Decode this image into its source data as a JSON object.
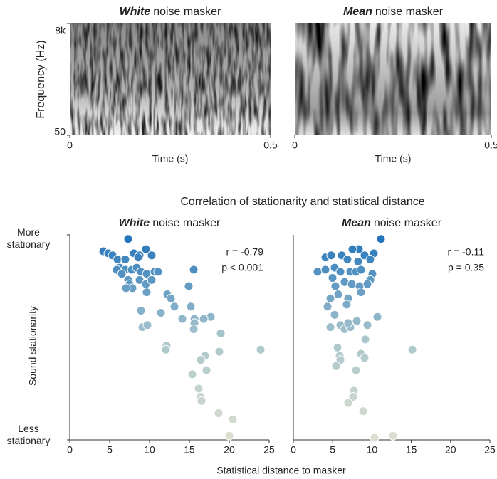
{
  "figure": {
    "title": "Correlation of stationarity and statistical distance",
    "xlabel": "Statistical distance to masker"
  },
  "chart_data": [
    {
      "type": "spectrogram",
      "title_parts": [
        "White",
        "noise masker"
      ],
      "xlabel": "Time (s)",
      "ylabel": "Frequency (Hz)",
      "xlim": [
        0,
        0.5
      ],
      "xticks": [
        0,
        0.5
      ],
      "ylim": [
        50,
        8000
      ],
      "yscale": "log",
      "yticks": [
        50,
        {
          "value": 8000,
          "label": "8k"
        }
      ]
    },
    {
      "type": "spectrogram",
      "title_parts": [
        "Mean",
        "noise masker"
      ],
      "xlabel": "Time (s)",
      "xlim": [
        0,
        0.5
      ],
      "xticks": [
        0,
        0.5
      ]
    },
    {
      "type": "scatter",
      "title_parts": [
        "White",
        "noise masker"
      ],
      "ylabel": "Sound stationarity",
      "annotations": [
        "r = -0.79",
        "p < 0.001"
      ],
      "xlim": [
        0,
        25
      ],
      "xticks": [
        0,
        5,
        10,
        15,
        20,
        25
      ],
      "ylim": [
        0,
        1
      ],
      "yticks": [
        {
          "value": 1,
          "label": "More stationary"
        },
        {
          "value": 0,
          "label": "Less stationary"
        }
      ],
      "colormap": [
        "#dcdfcf",
        "#a9c6cc",
        "#1f72bb"
      ],
      "x": [
        7.32,
        4.2,
        4.82,
        5.36,
        5.98,
        8.04,
        8.75,
        9.55,
        10.27,
        8.57,
        6.96,
        6.25,
        5.89,
        6.96,
        7.77,
        8.39,
        8.93,
        9.64,
        10.63,
        11.07,
        15.54,
        6.52,
        7.32,
        7.5,
        8.75,
        9.55,
        10.27,
        7.86,
        9.64,
        7.05,
        12.23,
        12.68,
        14.91,
        8.93,
        13.13,
        11.43,
        15.18,
        15.63,
        14.11,
        15.63,
        15.54,
        17.68,
        18.93,
        9.11,
        9.73,
        16.79,
        12.14,
        12.05,
        16.96,
        18.75,
        23.93,
        16.43,
        17.14,
        15.36,
        16.16,
        16.43,
        16.52,
        18.66,
        20.45,
        20.0
      ],
      "values": [
        0.98,
        0.92,
        0.91,
        0.9,
        0.88,
        0.91,
        0.9,
        0.93,
        0.9,
        0.89,
        0.88,
        0.84,
        0.83,
        0.83,
        0.83,
        0.84,
        0.82,
        0.81,
        0.82,
        0.82,
        0.83,
        0.81,
        0.78,
        0.76,
        0.78,
        0.76,
        0.78,
        0.74,
        0.72,
        0.74,
        0.71,
        0.69,
        0.75,
        0.63,
        0.65,
        0.62,
        0.65,
        0.59,
        0.59,
        0.57,
        0.54,
        0.6,
        0.52,
        0.55,
        0.56,
        0.59,
        0.46,
        0.44,
        0.41,
        0.43,
        0.44,
        0.39,
        0.34,
        0.32,
        0.25,
        0.21,
        0.19,
        0.13,
        0.1,
        0.02
      ]
    },
    {
      "type": "scatter",
      "title_parts": [
        "Mean",
        "noise masker"
      ],
      "annotations": [
        "r = -0.11",
        "p = 0.35"
      ],
      "xlim": [
        0,
        25
      ],
      "xticks": [
        0,
        5,
        10,
        15,
        20,
        25
      ],
      "ylim": [
        0,
        1
      ],
      "colormap": [
        "#dcdfcf",
        "#a9c6cc",
        "#1f72bb"
      ],
      "x": [
        11.14,
        10.24,
        8.33,
        6.16,
        4.08,
        4.8,
        7.52,
        9.06,
        9.78,
        6.88,
        8.24,
        5.25,
        3.08,
        4.08,
        5.98,
        7.25,
        7.97,
        8.61,
        10.05,
        9.78,
        4.98,
        5.34,
        6.52,
        7.43,
        8.42,
        9.42,
        5.71,
        8.61,
        6.97,
        4.35,
        4.71,
        6.79,
        5.25,
        5.98,
        6.52,
        7.25,
        6.97,
        8.06,
        4.71,
        10.69,
        9.42,
        5.62,
        9.15,
        8.61,
        5.89,
        9.06,
        5.98,
        15.13,
        5.43,
        7.97,
        7.7,
        7.61,
        6.97,
        8.88,
        12.68,
        10.33
      ],
      "values": [
        0.98,
        0.91,
        0.93,
        0.9,
        0.89,
        0.9,
        0.93,
        0.9,
        0.88,
        0.88,
        0.87,
        0.84,
        0.82,
        0.83,
        0.82,
        0.82,
        0.82,
        0.83,
        0.81,
        0.78,
        0.79,
        0.75,
        0.77,
        0.76,
        0.75,
        0.76,
        0.71,
        0.72,
        0.69,
        0.65,
        0.69,
        0.66,
        0.61,
        0.56,
        0.54,
        0.55,
        0.57,
        0.58,
        0.55,
        0.6,
        0.56,
        0.45,
        0.49,
        0.42,
        0.41,
        0.4,
        0.39,
        0.44,
        0.36,
        0.34,
        0.24,
        0.21,
        0.18,
        0.14,
        0.02,
        0.01
      ]
    }
  ]
}
